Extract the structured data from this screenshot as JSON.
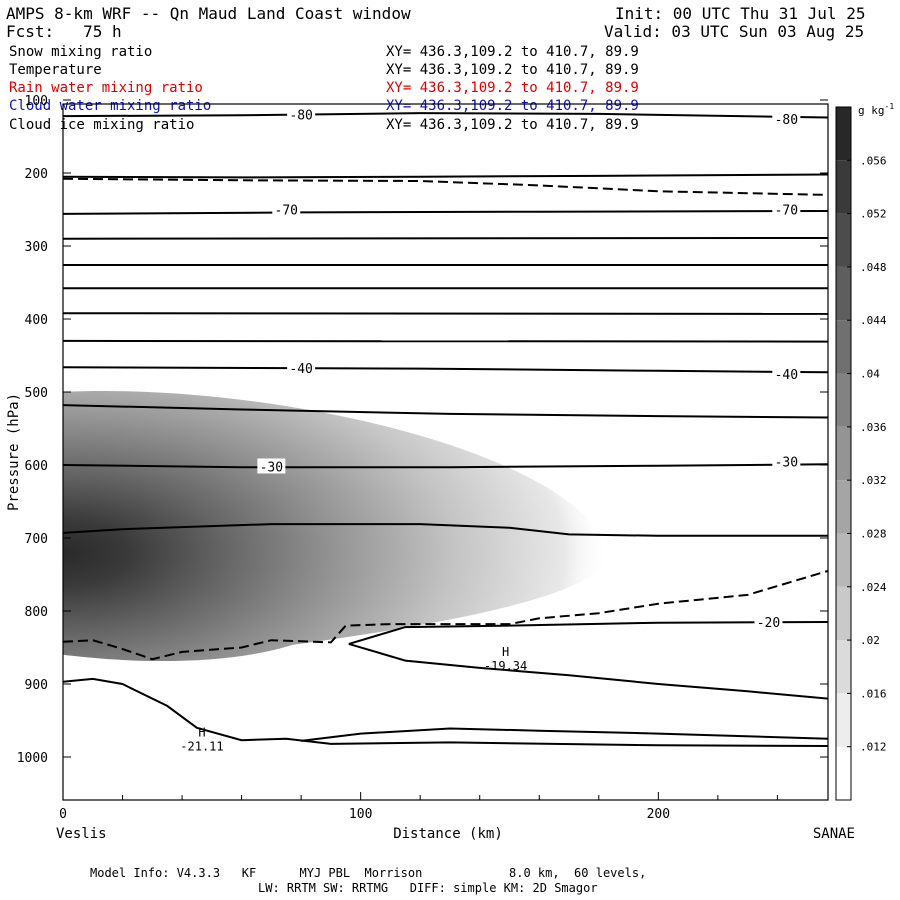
{
  "header": {
    "title": "AMPS 8-km WRF -- Qn Maud Land Coast window",
    "init": "Init: 00 UTC Thu 31 Jul 25",
    "forecast": "Fcst:   75 h",
    "valid": "Valid: 03 UTC Sun 03 Aug 25"
  },
  "fields": [
    {
      "name": "Snow mixing ratio",
      "xy": "XY= 436.3,109.2 to 410.7, 89.9",
      "color": "#000000"
    },
    {
      "name": "Temperature",
      "xy": "XY= 436.3,109.2 to 410.7, 89.9",
      "color": "#000000"
    },
    {
      "name": "Rain water mixing ratio",
      "xy": "XY= 436.3,109.2 to 410.7, 89.9",
      "color": "#e00000"
    },
    {
      "name": "Cloud water mixing ratio",
      "xy": "XY= 436.3,109.2 to 410.7, 89.9",
      "color": "#1010c0"
    },
    {
      "name": "Cloud ice mixing ratio",
      "xy": "XY= 436.3,109.2 to 410.7, 89.9",
      "color": "#000000"
    }
  ],
  "footer": {
    "line1": "Model Info: V4.3.3   KF      MYJ PBL  Morrison            8.0 km,  60 levels,",
    "line2": "LW: RRTM SW: RRTMG   DIFF: simple KM: 2D Smagor"
  },
  "chart_data": {
    "type": "cross-section",
    "xlabel": "Distance (km)",
    "ylabel": "Pressure (hPa)",
    "xlim": [
      0,
      257
    ],
    "ylim": [
      1050,
      100
    ],
    "x_ticks": [
      0,
      100,
      200
    ],
    "y_ticks": [
      100,
      200,
      300,
      400,
      500,
      600,
      700,
      800,
      900,
      1000
    ],
    "left_endpoint": "Veslis",
    "right_endpoint": "SANAE",
    "colorbar": {
      "unit": "g kg",
      "unit_exp": "-1",
      "ticks": [
        ".012",
        ".016",
        ".02",
        ".024",
        ".028",
        ".032",
        ".036",
        ".04",
        ".044",
        ".048",
        ".052",
        ".056"
      ],
      "min": 0.008,
      "max": 0.06
    },
    "snow_blob": {
      "peak_value": 0.056,
      "center_x": 0,
      "center_p": 755,
      "extent_x": 183,
      "top_p": 500,
      "bottom_p": 860
    },
    "isotherm_labels": [
      {
        "text": "-80",
        "x": 80,
        "p": 120
      },
      {
        "text": "-80",
        "x": 243,
        "p": 126
      },
      {
        "text": "-70",
        "x": 75,
        "p": 250
      },
      {
        "text": "-70",
        "x": 243,
        "p": 250
      },
      {
        "text": "-40",
        "x": 80,
        "p": 467
      },
      {
        "text": "-40",
        "x": 243,
        "p": 475
      },
      {
        "text": "-30",
        "x": 70,
        "p": 602
      },
      {
        "text": "-30",
        "x": 243,
        "p": 595
      },
      {
        "text": "-20",
        "x": 237,
        "p": 815
      }
    ],
    "extrema": [
      {
        "type": "H",
        "value": "-19.34",
        "x": 146,
        "p": 870
      },
      {
        "type": "H",
        "value": "-21.11",
        "x": 44,
        "p": 980
      }
    ],
    "temperature_contours": [
      [
        [
          0,
          122
        ],
        [
          60,
          121
        ],
        [
          120,
          118
        ],
        [
          180,
          119
        ],
        [
          257,
          124
        ]
      ],
      [
        [
          0,
          205
        ],
        [
          60,
          206
        ],
        [
          120,
          205
        ],
        [
          180,
          204
        ],
        [
          257,
          202
        ]
      ],
      [
        [
          0,
          256
        ],
        [
          80,
          254
        ],
        [
          160,
          253
        ],
        [
          257,
          252
        ]
      ],
      [
        [
          0,
          290
        ],
        [
          257,
          289
        ]
      ],
      [
        [
          0,
          326
        ],
        [
          257,
          326
        ]
      ],
      [
        [
          0,
          358
        ],
        [
          257,
          358
        ]
      ],
      [
        [
          0,
          392
        ],
        [
          257,
          393
        ]
      ],
      [
        [
          0,
          430
        ],
        [
          257,
          431
        ]
      ],
      [
        [
          0,
          466
        ],
        [
          120,
          468
        ],
        [
          200,
          471
        ],
        [
          257,
          473
        ]
      ],
      [
        [
          0,
          518
        ],
        [
          60,
          524
        ],
        [
          130,
          530
        ],
        [
          200,
          533
        ],
        [
          257,
          535
        ]
      ],
      [
        [
          0,
          600
        ],
        [
          60,
          603
        ],
        [
          130,
          603
        ],
        [
          200,
          601
        ],
        [
          257,
          599
        ]
      ],
      [
        [
          0,
          693
        ],
        [
          20,
          688
        ],
        [
          70,
          681
        ],
        [
          120,
          681
        ],
        [
          150,
          686
        ],
        [
          170,
          695
        ],
        [
          200,
          697
        ],
        [
          257,
          697
        ]
      ],
      [
        [
          96,
          845
        ],
        [
          115,
          822
        ],
        [
          150,
          820
        ],
        [
          200,
          816
        ],
        [
          257,
          815
        ]
      ],
      [
        [
          96,
          845
        ],
        [
          115,
          868
        ],
        [
          140,
          878
        ],
        [
          170,
          888
        ],
        [
          200,
          900
        ],
        [
          230,
          910
        ],
        [
          257,
          920
        ]
      ],
      [
        [
          0,
          897
        ],
        [
          10,
          893
        ],
        [
          20,
          900
        ],
        [
          35,
          930
        ],
        [
          45,
          960
        ],
        [
          60,
          977
        ],
        [
          75,
          975
        ],
        [
          90,
          982
        ],
        [
          130,
          980
        ],
        [
          200,
          984
        ],
        [
          257,
          985
        ]
      ],
      [
        [
          80,
          978
        ],
        [
          100,
          968
        ],
        [
          130,
          961
        ],
        [
          160,
          964
        ],
        [
          200,
          968
        ],
        [
          257,
          975
        ]
      ]
    ],
    "dashed_contours": [
      [
        [
          0,
          208
        ],
        [
          60,
          210
        ],
        [
          120,
          211
        ],
        [
          160,
          217
        ],
        [
          200,
          225
        ],
        [
          257,
          230
        ]
      ],
      [
        [
          0,
          842
        ],
        [
          10,
          840
        ],
        [
          20,
          852
        ],
        [
          30,
          866
        ],
        [
          40,
          856
        ],
        [
          60,
          850
        ],
        [
          70,
          840
        ],
        [
          90,
          843
        ],
        [
          95,
          820
        ],
        [
          110,
          818
        ],
        [
          150,
          818
        ],
        [
          160,
          810
        ],
        [
          180,
          803
        ],
        [
          200,
          790
        ],
        [
          230,
          778
        ],
        [
          257,
          745
        ]
      ]
    ]
  }
}
